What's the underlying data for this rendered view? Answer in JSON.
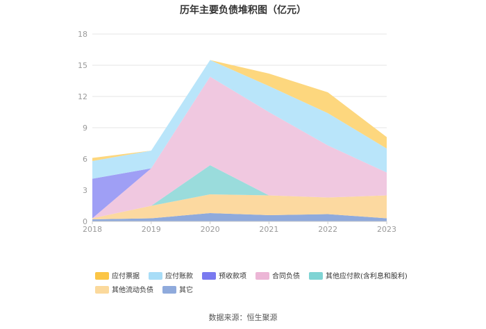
{
  "chart_data": {
    "type": "area",
    "title": "历年主要负债堆积图（亿元）",
    "x": [
      "2018",
      "2019",
      "2020",
      "2021",
      "2022",
      "2023"
    ],
    "ylim": [
      0,
      18
    ],
    "yticks": [
      "0",
      "3",
      "6",
      "9",
      "12",
      "15",
      "18"
    ],
    "grid": true,
    "legend_position": "bottom",
    "stacked": true,
    "series": [
      {
        "name": "其它",
        "color": "#8faadc",
        "values": [
          0.2,
          0.3,
          0.8,
          0.6,
          0.7,
          0.3
        ]
      },
      {
        "name": "其他流动负债",
        "color": "#fcd9a0",
        "values": [
          0.1,
          1.2,
          1.8,
          1.9,
          1.6,
          2.2
        ]
      },
      {
        "name": "其他应付款(含利息和股利)",
        "color": "#9adcdc",
        "values": [
          0.0,
          0.0,
          2.8,
          0.0,
          0.0,
          0.0
        ]
      },
      {
        "name": "合同负债",
        "color": "#f0c8e0",
        "values": [
          0.0,
          3.6,
          8.5,
          8.0,
          5.0,
          2.2
        ]
      },
      {
        "name": "预收款项",
        "color": "#9f9ff5",
        "values": [
          3.8,
          0.0,
          0.0,
          0.0,
          0.0,
          0.0
        ]
      },
      {
        "name": "应付账款",
        "color": "#b9e5fa",
        "values": [
          1.7,
          1.7,
          1.6,
          2.5,
          3.1,
          2.3
        ]
      },
      {
        "name": "应付票据",
        "color": "#fdd77e",
        "values": [
          0.3,
          0.0,
          0.0,
          1.2,
          2.0,
          1.1
        ]
      }
    ]
  },
  "legend": {
    "items": [
      {
        "label": "应付票据",
        "color": "#fbc546"
      },
      {
        "label": "应付账款",
        "color": "#a8ddf7"
      },
      {
        "label": "预收款项",
        "color": "#7a7af0"
      },
      {
        "label": "合同负债",
        "color": "#ecb6d6"
      },
      {
        "label": "其他应付款(含利息和股利)",
        "color": "#7fd4d4"
      },
      {
        "label": "其他流动负债",
        "color": "#fbd99c"
      },
      {
        "label": "其它",
        "color": "#8faadc"
      }
    ]
  },
  "source": "数据来源：恒生聚源"
}
